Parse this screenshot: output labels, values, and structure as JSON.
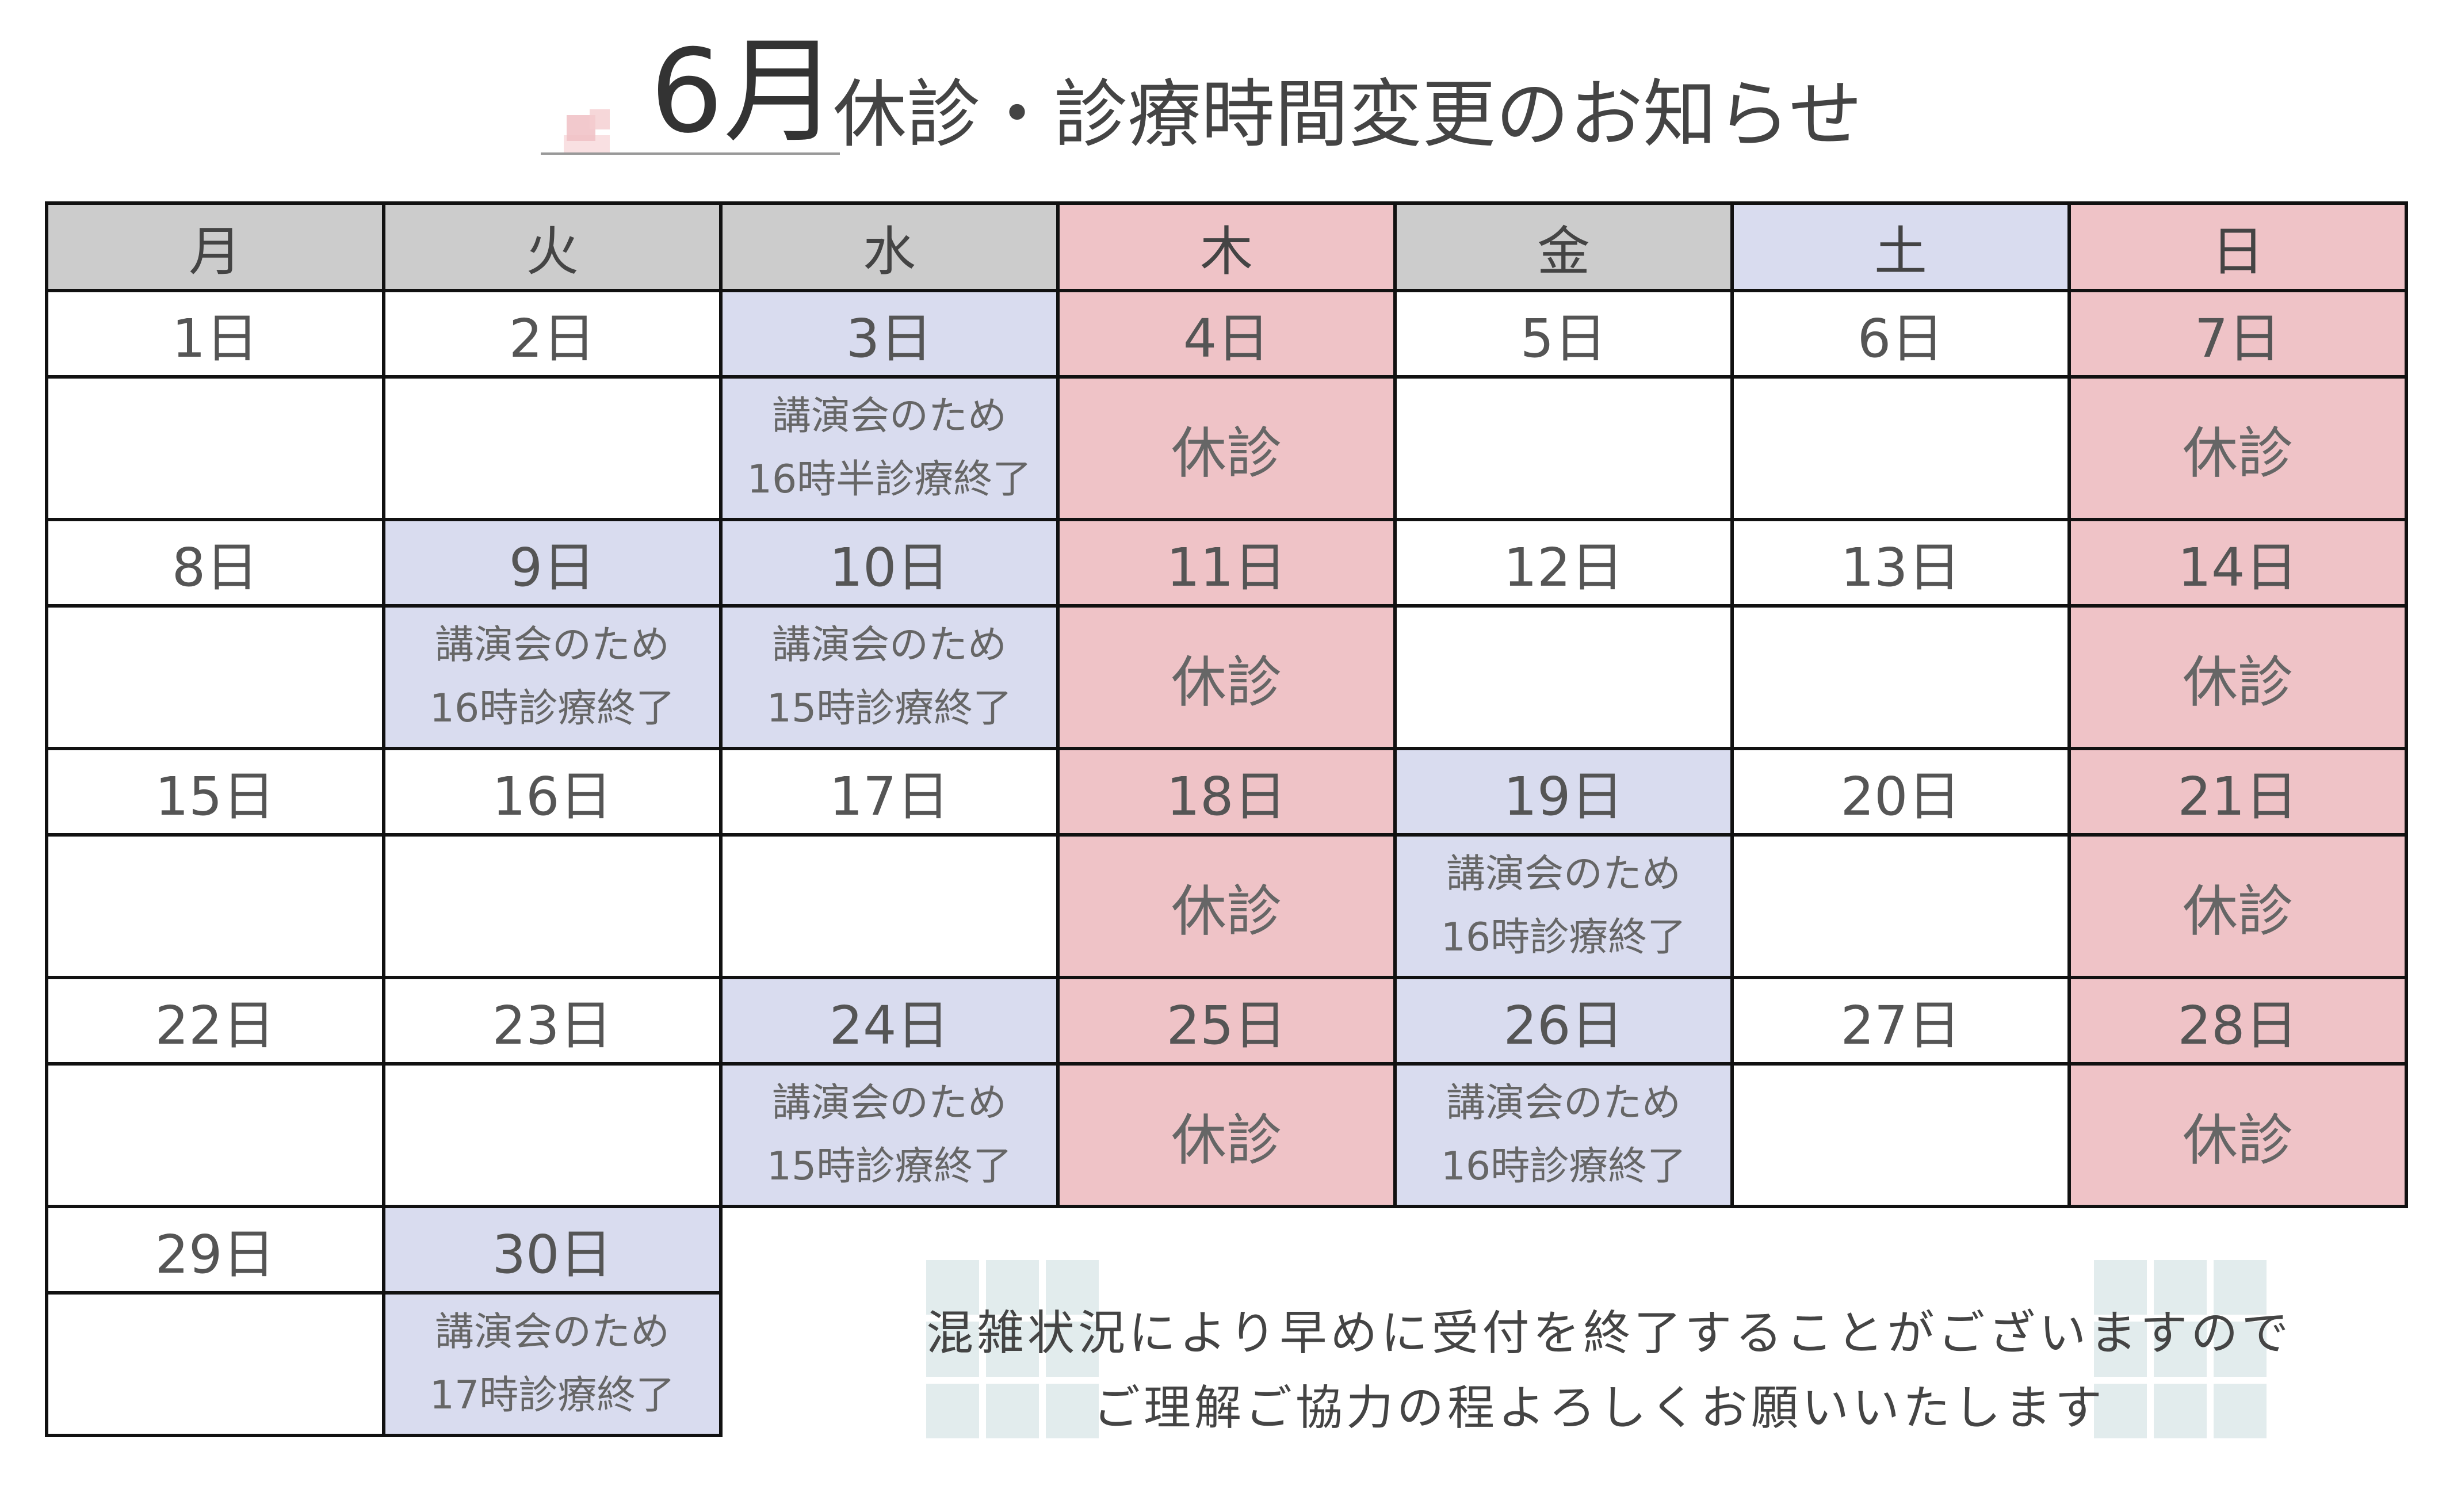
{
  "title": {
    "month": "6月",
    "text": "休診・診療時間変更のお知らせ"
  },
  "weekdays": [
    "月",
    "火",
    "水",
    "木",
    "金",
    "土",
    "日"
  ],
  "weekday_bg": [
    "gray",
    "gray",
    "gray",
    "pink",
    "gray",
    "blue",
    "pink"
  ],
  "weeks": [
    [
      {
        "date": "1日",
        "bg": "none",
        "note": []
      },
      {
        "date": "2日",
        "bg": "none",
        "note": []
      },
      {
        "date": "3日",
        "bg": "blue",
        "note": [
          "講演会のため",
          "16時半診療終了"
        ]
      },
      {
        "date": "4日",
        "bg": "pink",
        "closed": "休診"
      },
      {
        "date": "5日",
        "bg": "none",
        "note": []
      },
      {
        "date": "6日",
        "bg": "none",
        "note": []
      },
      {
        "date": "7日",
        "bg": "pink",
        "closed": "休診"
      }
    ],
    [
      {
        "date": "8日",
        "bg": "none",
        "note": []
      },
      {
        "date": "9日",
        "bg": "blue",
        "note": [
          "講演会のため",
          "16時診療終了"
        ]
      },
      {
        "date": "10日",
        "bg": "blue",
        "note": [
          "講演会のため",
          "15時診療終了"
        ]
      },
      {
        "date": "11日",
        "bg": "pink",
        "closed": "休診"
      },
      {
        "date": "12日",
        "bg": "none",
        "note": []
      },
      {
        "date": "13日",
        "bg": "none",
        "note": []
      },
      {
        "date": "14日",
        "bg": "pink",
        "closed": "休診"
      }
    ],
    [
      {
        "date": "15日",
        "bg": "none",
        "note": []
      },
      {
        "date": "16日",
        "bg": "none",
        "note": []
      },
      {
        "date": "17日",
        "bg": "none",
        "note": []
      },
      {
        "date": "18日",
        "bg": "pink",
        "closed": "休診"
      },
      {
        "date": "19日",
        "bg": "blue",
        "note": [
          "講演会のため",
          "16時診療終了"
        ]
      },
      {
        "date": "20日",
        "bg": "none",
        "note": []
      },
      {
        "date": "21日",
        "bg": "pink",
        "closed": "休診"
      }
    ],
    [
      {
        "date": "22日",
        "bg": "none",
        "note": []
      },
      {
        "date": "23日",
        "bg": "none",
        "note": []
      },
      {
        "date": "24日",
        "bg": "blue",
        "note": [
          "講演会のため",
          "15時診療終了"
        ]
      },
      {
        "date": "25日",
        "bg": "pink",
        "closed": "休診"
      },
      {
        "date": "26日",
        "bg": "blue",
        "note": [
          "講演会のため",
          "16時診療終了"
        ]
      },
      {
        "date": "27日",
        "bg": "none",
        "note": []
      },
      {
        "date": "28日",
        "bg": "pink",
        "closed": "休診"
      }
    ],
    [
      {
        "date": "29日",
        "bg": "none",
        "note": []
      },
      {
        "date": "30日",
        "bg": "blue",
        "note": [
          "講演会のため",
          "17時診療終了"
        ]
      }
    ]
  ],
  "notice": {
    "line1": "混雑状況により早めに受付を終了することがございますので",
    "line2": "ご理解ご協力の程よろしくお願いいたします"
  },
  "colors": {
    "gray": "#cccccc",
    "pink": "#efc3c7",
    "blue": "#d9dcef",
    "border": "#111111"
  }
}
